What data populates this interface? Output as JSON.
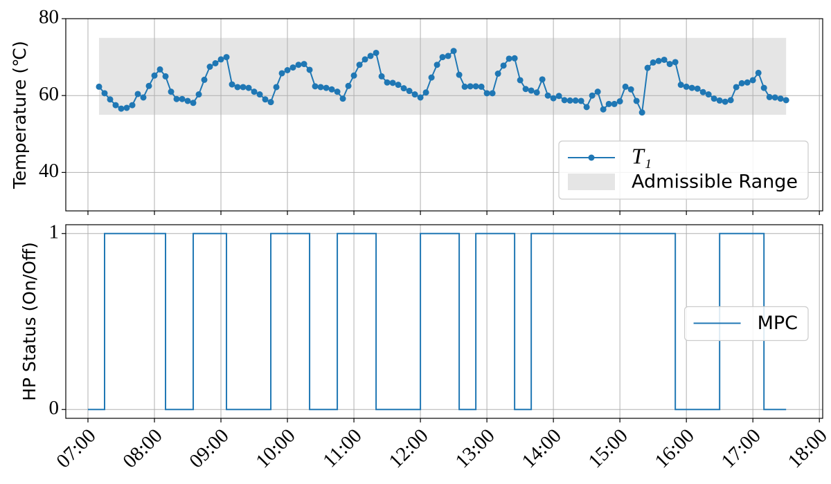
{
  "chart_data": [
    {
      "type": "line",
      "ylabel": "Temperature (℃)",
      "x": [
        "07:10",
        "07:15",
        "07:20",
        "07:25",
        "07:30",
        "07:35",
        "07:40",
        "07:45",
        "07:50",
        "07:55",
        "08:00",
        "08:05",
        "08:10",
        "08:15",
        "08:20",
        "08:25",
        "08:30",
        "08:35",
        "08:40",
        "08:45",
        "08:50",
        "08:55",
        "09:00",
        "09:05",
        "09:10",
        "09:15",
        "09:20",
        "09:25",
        "09:30",
        "09:35",
        "09:40",
        "09:45",
        "09:50",
        "09:55",
        "10:00",
        "10:05",
        "10:10",
        "10:15",
        "10:20",
        "10:25",
        "10:30",
        "10:35",
        "10:40",
        "10:45",
        "10:50",
        "10:55",
        "11:00",
        "11:05",
        "11:10",
        "11:15",
        "11:20",
        "11:25",
        "11:30",
        "11:35",
        "11:40",
        "11:45",
        "11:50",
        "11:55",
        "12:00",
        "12:05",
        "12:10",
        "12:15",
        "12:20",
        "12:25",
        "12:30",
        "12:35",
        "12:40",
        "12:45",
        "12:50",
        "12:55",
        "13:00",
        "13:05",
        "13:10",
        "13:15",
        "13:20",
        "13:25",
        "13:30",
        "13:35",
        "13:40",
        "13:45",
        "13:50",
        "13:55",
        "14:00",
        "14:05",
        "14:10",
        "14:15",
        "14:20",
        "14:25",
        "14:30",
        "14:35",
        "14:40",
        "14:45",
        "14:50",
        "14:55",
        "15:00",
        "15:05",
        "15:10",
        "15:15",
        "15:20",
        "15:25",
        "15:30",
        "15:35",
        "15:40",
        "15:45",
        "15:50",
        "15:55",
        "16:00",
        "16:05",
        "16:10",
        "16:15",
        "16:20",
        "16:25",
        "16:30",
        "16:35",
        "16:40",
        "16:45",
        "16:50",
        "16:55",
        "17:00",
        "17:05",
        "17:10",
        "17:15",
        "17:20",
        "17:25",
        "17:30"
      ],
      "series": [
        {
          "name": "T₁",
          "color": "#1f77b4",
          "values": [
            62.3,
            60.6,
            59.0,
            57.5,
            56.6,
            56.8,
            57.5,
            60.4,
            59.5,
            62.5,
            65.2,
            66.8,
            65.0,
            61.0,
            59.1,
            59.1,
            58.6,
            58.1,
            60.3,
            64.1,
            67.5,
            68.4,
            69.4,
            70.0,
            62.9,
            62.2,
            62.2,
            62.0,
            61.0,
            60.3,
            59.0,
            58.3,
            62.2,
            65.8,
            66.6,
            67.3,
            68.0,
            68.2,
            66.7,
            62.4,
            62.2,
            62.0,
            61.6,
            61.0,
            59.2,
            62.5,
            65.2,
            68.0,
            69.4,
            70.3,
            71.1,
            65.0,
            63.4,
            63.3,
            62.8,
            61.9,
            61.2,
            60.3,
            59.5,
            60.8,
            64.7,
            68.0,
            70.0,
            70.3,
            71.6,
            65.4,
            62.3,
            62.4,
            62.4,
            62.3,
            60.6,
            60.6,
            65.7,
            67.8,
            69.6,
            69.7,
            64.0,
            61.7,
            61.3,
            60.8,
            64.2,
            60.0,
            59.3,
            59.9,
            58.8,
            58.7,
            58.7,
            58.6,
            57.0,
            60.0,
            61.0,
            56.4,
            57.8,
            57.8,
            58.5,
            62.3,
            61.6,
            58.6,
            55.6,
            67.2,
            68.6,
            69.0,
            69.3,
            68.2,
            68.7,
            62.8,
            62.3,
            62.0,
            61.8,
            60.9,
            60.3,
            59.2,
            58.7,
            58.4,
            58.8,
            62.2,
            63.2,
            63.4,
            64.0,
            65.9,
            62.0,
            59.6,
            59.5,
            59.2,
            58.8
          ]
        }
      ],
      "band": {
        "name": "Admissible Range",
        "x": [
          "07:10",
          "17:30"
        ],
        "y": [
          55,
          75
        ],
        "color": "#e5e5e5"
      },
      "xlim": [
        "06:40",
        "18:03"
      ],
      "xticks": [
        "07:00",
        "08:00",
        "09:00",
        "10:00",
        "11:00",
        "12:00",
        "13:00",
        "14:00",
        "15:00",
        "16:00",
        "17:00",
        "18:00"
      ],
      "ylim": [
        30,
        80
      ],
      "yticks": [
        40,
        60,
        80
      ],
      "grid": true,
      "legend": "lower right"
    },
    {
      "type": "step",
      "ylabel": "HP Status (On/Off)",
      "series": [
        {
          "name": "MPC",
          "color": "#1f77b4",
          "x": [
            "07:00",
            "07:15",
            "08:10",
            "08:35",
            "09:05",
            "09:45",
            "10:20",
            "10:45",
            "11:20",
            "12:00",
            "12:35",
            "12:50",
            "13:25",
            "13:40",
            "15:50",
            "16:30",
            "17:10",
            "17:30"
          ],
          "values": [
            0,
            1,
            0,
            1,
            0,
            1,
            0,
            1,
            0,
            1,
            0,
            1,
            0,
            1,
            0,
            1,
            0,
            0
          ]
        }
      ],
      "xlim": [
        "06:40",
        "18:03"
      ],
      "xticks": [
        "07:00",
        "08:00",
        "09:00",
        "10:00",
        "11:00",
        "12:00",
        "13:00",
        "14:00",
        "15:00",
        "16:00",
        "17:00",
        "18:00"
      ],
      "ylim": [
        -0.05,
        1.05
      ],
      "yticks": [
        0,
        1
      ],
      "grid": true,
      "legend": "center right"
    }
  ]
}
